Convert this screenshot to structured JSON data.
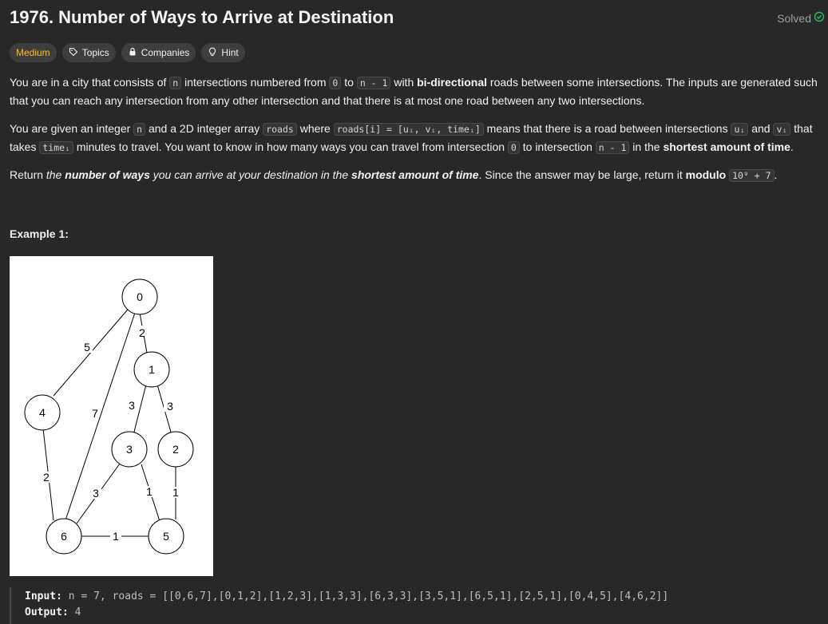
{
  "problem": {
    "title": "1976. Number of Ways to Arrive at Destination",
    "status": "Solved",
    "difficulty": "Medium",
    "tags": [
      "Topics",
      "Companies",
      "Hint"
    ]
  },
  "description": {
    "p1": {
      "a": "You are in a city that consists of ",
      "code_n": "n",
      "b": " intersections numbered from ",
      "code_0": "0",
      "c": " to ",
      "code_n1": "n - 1",
      "d": " with ",
      "bold": "bi-directional",
      "e": " roads between some intersections. The inputs are generated such that you can reach any intersection from any other intersection and that there is at most one road between any two intersections."
    },
    "p2": {
      "a": "You are given an integer ",
      "code_n": "n",
      "b": " and a 2D integer array ",
      "code_roads": "roads",
      "c": " where ",
      "code_roadsi": "roads[i] = [uᵢ, vᵢ, timeᵢ]",
      "d": " means that there is a road between intersections ",
      "code_u": "uᵢ",
      "e": " and ",
      "code_v": "vᵢ",
      "f": " that takes ",
      "code_time": "timeᵢ",
      "g": " minutes to travel. You want to know in how many ways you can travel from intersection ",
      "code_0": "0",
      "h": " to intersection ",
      "code_n1": "n - 1",
      "i": " in the ",
      "bold": "shortest amount of time",
      "j": "."
    },
    "p3": {
      "a": "Return ",
      "i1": "the ",
      "bi1": "number of ways",
      "i2": " you can arrive at your destination in the ",
      "bi2": "shortest amount of time",
      "b": ". Since the answer may be large, return it ",
      "bold": "modulo",
      "c": " ",
      "code_mod": "10⁹ + 7",
      "d": "."
    }
  },
  "example": {
    "title": "Example 1:",
    "input_label": "Input:",
    "input_value": "n = 7, roads = [[0,6,7],[0,1,2],[1,2,3],[1,3,3],[6,3,3],[3,5,1],[6,5,1],[2,5,1],[0,4,5],[4,6,2]]",
    "output_label": "Output:",
    "output_value": "4"
  },
  "graph": {
    "nodes": [
      "0",
      "1",
      "2",
      "3",
      "4",
      "5",
      "6"
    ],
    "edge_weights": [
      "5",
      "2",
      "7",
      "3",
      "3",
      "2",
      "3",
      "1",
      "1",
      "1"
    ]
  },
  "colors": {
    "background": "#282828",
    "medium": "#ffc01e",
    "solved_check": "#2cbb5d"
  }
}
